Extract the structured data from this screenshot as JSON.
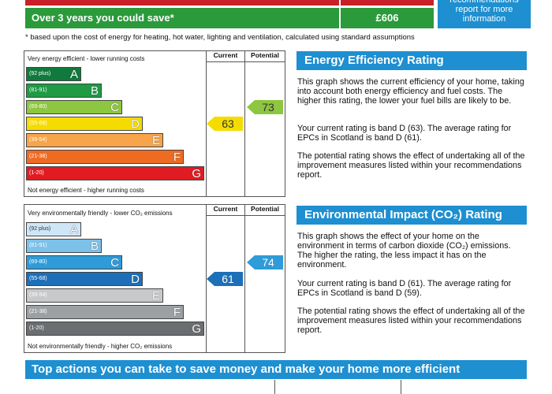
{
  "savings": {
    "label": "Over 3 years you could save",
    "asterisk": "*",
    "amount": "£606",
    "recommendations_note": "recommendations report for more information",
    "footnote": "* based upon the cost of energy for heating, hot water, lighting and ventilation, calculated using standard assumptions"
  },
  "energy_graph": {
    "top_label": "Very energy efficient - lower running costs",
    "bottom_label": "Not energy efficient - higher running costs",
    "col_current": "Current",
    "col_potential": "Potential",
    "bands": [
      {
        "range": "(92 plus)",
        "letter": "A",
        "color": "#0f7a3c"
      },
      {
        "range": "(81-91)",
        "letter": "B",
        "color": "#1f9a45"
      },
      {
        "range": "(69-80)",
        "letter": "C",
        "color": "#8dc63f"
      },
      {
        "range": "(55-68)",
        "letter": "D",
        "color": "#f5dc00"
      },
      {
        "range": "(39-54)",
        "letter": "E",
        "color": "#f7a44a"
      },
      {
        "range": "(21-38)",
        "letter": "F",
        "color": "#ee6b22"
      },
      {
        "range": "(1-20)",
        "letter": "G",
        "color": "#e11b22"
      }
    ],
    "current": {
      "value": "63",
      "color": "#f5dc00"
    },
    "potential": {
      "value": "73",
      "color": "#8dc63f"
    }
  },
  "energy_text": {
    "heading": "Energy Efficiency Rating",
    "p1": "This graph shows the current efficiency of your home, taking into account both energy efficiency and fuel costs. The higher this rating, the lower your fuel bills are likely to be.",
    "p2": "Your current rating is band D (63). The average rating for EPCs in Scotland is band D (61).",
    "p3": "The potential rating shows the effect of undertaking all of the improvement measures listed within your recommendations report."
  },
  "env_graph": {
    "top_label": "Very environmentally friendly - lower CO₂ emissions",
    "bottom_label": "Not environmentally friendly - higher CO₂ emissions",
    "col_current": "Current",
    "col_potential": "Potential",
    "bands": [
      {
        "range": "(92 plus)",
        "letter": "A",
        "color": "#cfe6f7"
      },
      {
        "range": "(81-91)",
        "letter": "B",
        "color": "#7cc1ea"
      },
      {
        "range": "(69-80)",
        "letter": "C",
        "color": "#2f9bd8"
      },
      {
        "range": "(55-68)",
        "letter": "D",
        "color": "#1c6fb8"
      },
      {
        "range": "(39-54)",
        "letter": "E",
        "color": "#c7c9cb"
      },
      {
        "range": "(21-38)",
        "letter": "F",
        "color": "#9da0a3"
      },
      {
        "range": "(1-20)",
        "letter": "G",
        "color": "#6b6e71"
      }
    ],
    "current": {
      "value": "61",
      "color": "#1c6fb8"
    },
    "potential": {
      "value": "74",
      "color": "#2f9bd8"
    }
  },
  "env_text": {
    "heading": "Environmental Impact (CO₂) Rating",
    "p1": "This graph shows the effect of your home on the environment in terms of carbon dioxide (CO₂) emissions. The higher the rating, the less impact it has on the environment.",
    "p2": "Your current rating is band D (61). The average rating for EPCs in Scotland is band D (59).",
    "p3": "The potential rating shows the effect of undertaking all of the improvement measures listed within your recommendations report."
  },
  "bottom_heading": "Top actions you can take to save money and make your home more efficient"
}
